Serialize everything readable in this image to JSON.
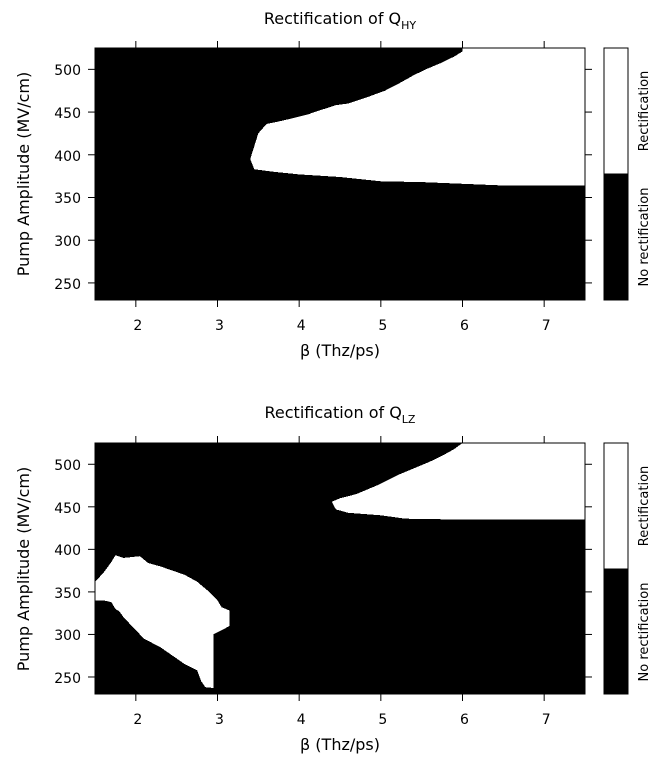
{
  "chart_data": [
    {
      "type": "heatmap",
      "title_main": "Rectification of Q",
      "title_sub": "HY",
      "xlabel": "β (Thz/ps)",
      "ylabel": "Pump Amplitude (MV/cm)",
      "xlim": [
        1.5,
        7.5
      ],
      "ylim": [
        230,
        525
      ],
      "x_ticks": [
        "2",
        "3",
        "4",
        "5",
        "6",
        "7"
      ],
      "y_ticks": [
        "250",
        "300",
        "350",
        "400",
        "450",
        "500"
      ],
      "legend": [
        "No rectification",
        "Rectification"
      ],
      "colors": {
        "no_rectification": "#000000",
        "rectification": "#ffffff"
      },
      "regions": [
        {
          "state": "Rectification",
          "boundary": [
            [
              6.0,
              525
            ],
            [
              6.0,
              521
            ],
            [
              5.9,
              515
            ],
            [
              5.75,
              508
            ],
            [
              5.55,
              500
            ],
            [
              5.4,
              493
            ],
            [
              5.25,
              485
            ],
            [
              5.05,
              475
            ],
            [
              4.85,
              468
            ],
            [
              4.6,
              460
            ],
            [
              4.45,
              458
            ],
            [
              4.25,
              452
            ],
            [
              4.1,
              447
            ],
            [
              3.8,
              440
            ],
            [
              3.6,
              436
            ],
            [
              3.5,
              425
            ],
            [
              3.45,
              410
            ],
            [
              3.4,
              395
            ],
            [
              3.45,
              383
            ],
            [
              3.7,
              380
            ],
            [
              4.0,
              377
            ],
            [
              4.5,
              374
            ],
            [
              5.0,
              369
            ],
            [
              5.5,
              368
            ],
            [
              6.0,
              366
            ],
            [
              6.5,
              364
            ],
            [
              7.5,
              364
            ],
            [
              7.5,
              525
            ]
          ]
        }
      ]
    },
    {
      "type": "heatmap",
      "title_main": "Rectification of Q",
      "title_sub": "LZ",
      "xlabel": "β (Thz/ps)",
      "ylabel": "Pump Amplitude (MV/cm)",
      "xlim": [
        1.5,
        7.5
      ],
      "ylim": [
        230,
        525
      ],
      "x_ticks": [
        "2",
        "3",
        "4",
        "5",
        "6",
        "7"
      ],
      "y_ticks": [
        "250",
        "300",
        "350",
        "400",
        "450",
        "500"
      ],
      "legend": [
        "No rectification",
        "Rectification"
      ],
      "colors": {
        "no_rectification": "#000000",
        "rectification": "#ffffff"
      },
      "regions": [
        {
          "state": "Rectification",
          "boundary": [
            [
              6.0,
              525
            ],
            [
              5.9,
              518
            ],
            [
              5.75,
              510
            ],
            [
              5.6,
              503
            ],
            [
              5.4,
              495
            ],
            [
              5.2,
              487
            ],
            [
              4.95,
              475
            ],
            [
              4.7,
              465
            ],
            [
              4.5,
              460
            ],
            [
              4.4,
              456
            ],
            [
              4.45,
              447
            ],
            [
              4.6,
              443
            ],
            [
              5.0,
              440
            ],
            [
              5.3,
              436
            ],
            [
              6.0,
              435
            ],
            [
              7.5,
              435
            ],
            [
              7.5,
              525
            ]
          ]
        },
        {
          "state": "Rectification",
          "boundary": [
            [
              1.5,
              340
            ],
            [
              1.5,
              362
            ],
            [
              1.6,
              372
            ],
            [
              1.7,
              385
            ],
            [
              1.75,
              393
            ],
            [
              1.85,
              390
            ],
            [
              2.05,
              392
            ],
            [
              2.15,
              384
            ],
            [
              2.3,
              380
            ],
            [
              2.45,
              375
            ],
            [
              2.6,
              370
            ],
            [
              2.75,
              362
            ],
            [
              2.9,
              350
            ],
            [
              3.0,
              340
            ],
            [
              3.05,
              332
            ],
            [
              3.15,
              328
            ],
            [
              3.15,
              310
            ],
            [
              3.05,
              305
            ],
            [
              2.95,
              300
            ],
            [
              2.95,
              280
            ],
            [
              2.95,
              258
            ],
            [
              2.95,
              245
            ],
            [
              2.95,
              237
            ],
            [
              2.85,
              238
            ],
            [
              2.8,
              245
            ],
            [
              2.75,
              258
            ],
            [
              2.6,
              265
            ],
            [
              2.45,
              275
            ],
            [
              2.3,
              285
            ],
            [
              2.1,
              295
            ],
            [
              1.95,
              310
            ],
            [
              1.85,
              320
            ],
            [
              1.8,
              327
            ],
            [
              1.75,
              330
            ],
            [
              1.7,
              338
            ],
            [
              1.6,
              340
            ]
          ]
        }
      ]
    }
  ]
}
